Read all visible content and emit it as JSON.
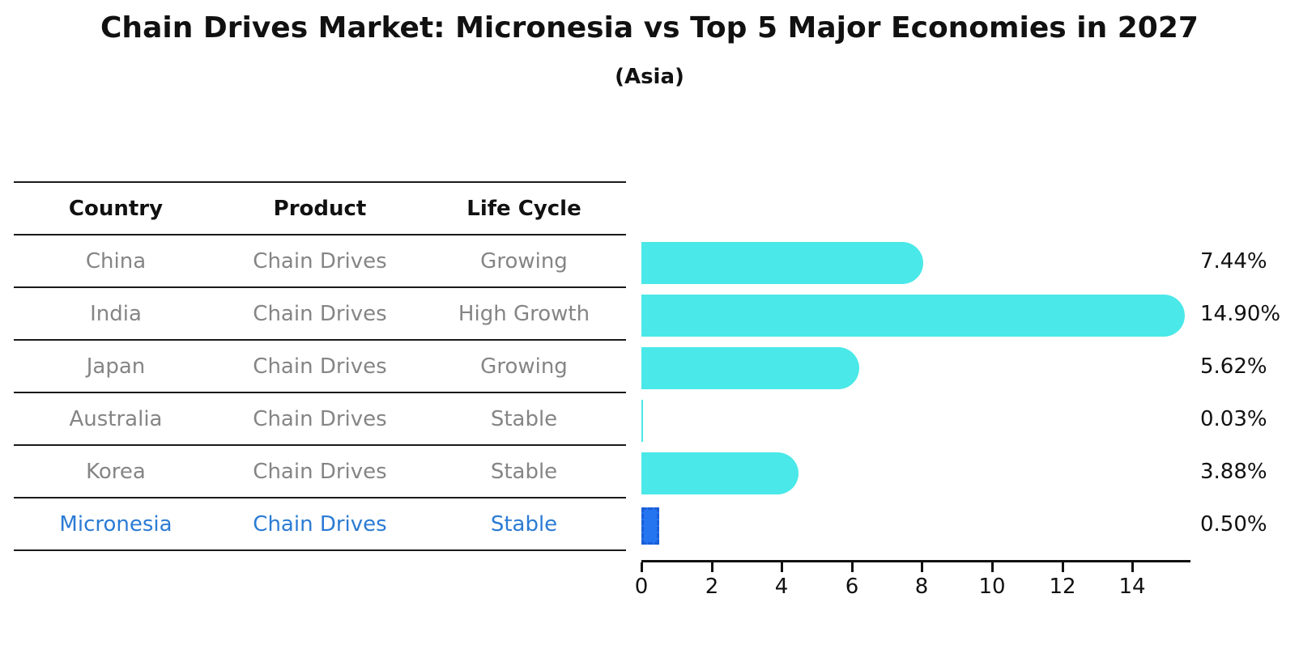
{
  "title": "Chain Drives Market: Micronesia vs Top 5 Major Economies in 2027",
  "subtitle": "(Asia)",
  "table": {
    "columns": [
      "Country",
      "Product",
      "Life Cycle"
    ],
    "rows": [
      {
        "country": "China",
        "product": "Chain Drives",
        "life_cycle": "Growing",
        "highlight": false
      },
      {
        "country": "India",
        "product": "Chain Drives",
        "life_cycle": "High Growth",
        "highlight": false
      },
      {
        "country": "Japan",
        "product": "Chain Drives",
        "life_cycle": "Growing",
        "highlight": false
      },
      {
        "country": "Australia",
        "product": "Chain Drives",
        "life_cycle": "Stable",
        "highlight": false
      },
      {
        "country": "Korea",
        "product": "Chain Drives",
        "life_cycle": "Stable",
        "highlight": false
      },
      {
        "country": "Micronesia",
        "product": "Chain Drives",
        "life_cycle": "Stable",
        "highlight": true
      }
    ]
  },
  "chart_data": {
    "type": "bar",
    "orientation": "horizontal",
    "title": "Chain Drives Market: Micronesia vs Top 5 Major Economies in 2027",
    "subtitle": "(Asia)",
    "categories": [
      "China",
      "India",
      "Japan",
      "Australia",
      "Korea",
      "Micronesia"
    ],
    "values": [
      7.44,
      14.9,
      5.62,
      0.03,
      3.88,
      0.5
    ],
    "value_labels": [
      "7.44%",
      "14.90%",
      "5.62%",
      "0.03%",
      "3.88%",
      "0.50%"
    ],
    "x_ticks": [
      0,
      2,
      4,
      6,
      8,
      10,
      12,
      14
    ],
    "xlim": [
      0,
      15.66
    ],
    "grid": false,
    "legend": "none",
    "bar_color": "#4AE8E8",
    "highlight_color": "#2575F0",
    "highlight_index": 5,
    "highlight_edge_style": "dashed"
  },
  "colors": {
    "bar_cyan": "#4AE8E8",
    "bar_blue": "#2575F0",
    "text_gray": "#858585",
    "text_blue": "#2b7bd4",
    "text_black": "#111111",
    "line_black": "#1a1a1a"
  }
}
